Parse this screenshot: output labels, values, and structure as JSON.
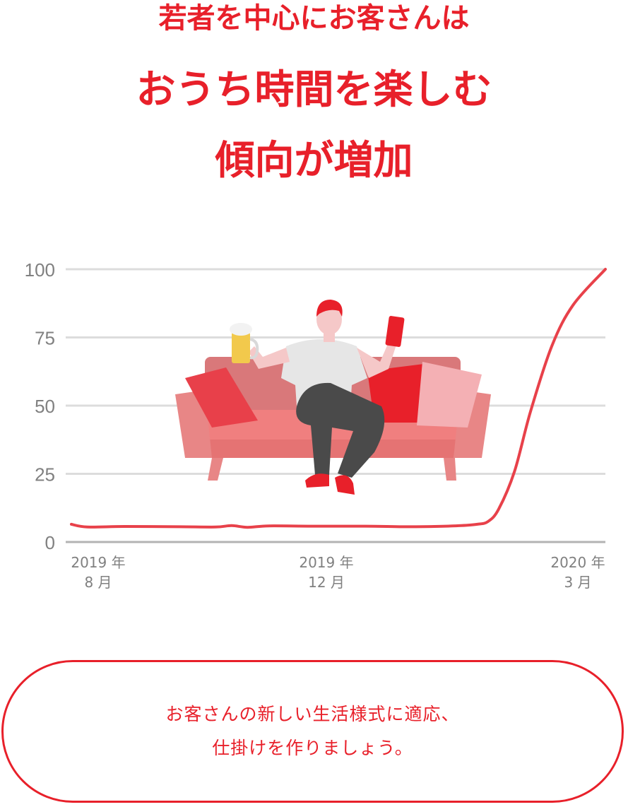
{
  "headline": {
    "sub": "若者を中心にお客さんは",
    "main_line1": "おうち時間を楽しむ",
    "main_line2": "傾向が増加"
  },
  "chart_data": {
    "type": "line",
    "title": "",
    "xlabel": "",
    "ylabel": "",
    "ylim": [
      0,
      100
    ],
    "yticks": [
      "0",
      "25",
      "50",
      "75",
      "100"
    ],
    "grid": true,
    "legend": "none",
    "x_tick_labels": [
      {
        "line1": "2019 年",
        "line2": "8 月"
      },
      {
        "line1": "2019 年",
        "line2": "12 月"
      },
      {
        "line1": "2020 年",
        "line2": "3 月"
      }
    ],
    "series": [
      {
        "color": "#e8414a",
        "x": [
          0,
          0.03,
          0.1,
          0.2,
          0.27,
          0.3,
          0.33,
          0.37,
          0.45,
          0.55,
          0.62,
          0.68,
          0.73,
          0.76,
          0.78,
          0.8,
          0.83,
          0.86,
          0.9,
          0.94,
          1.0
        ],
        "values": [
          6.5,
          5.5,
          5.7,
          5.6,
          5.5,
          6.0,
          5.4,
          5.9,
          5.8,
          5.8,
          5.6,
          5.7,
          6.0,
          6.5,
          7.5,
          12,
          26,
          48,
          72,
          87,
          100
        ]
      }
    ]
  },
  "illustration": {
    "name": "person-on-sofa",
    "colors": {
      "sofa": "#f08a8a",
      "sofa_dark": "#d96b6b",
      "cushion_red": "#e8202a",
      "cushion_pink": "#f5b0b5",
      "shirt": "#e6e6e6",
      "pants": "#4a4a4a",
      "skin": "#f5c8c8",
      "hair": "#e8202a",
      "beer": "#f2c94c"
    }
  },
  "callout": {
    "line1": "お客さんの新しい生活様式に適応、",
    "line2": "仕掛けを作りましょう。"
  }
}
